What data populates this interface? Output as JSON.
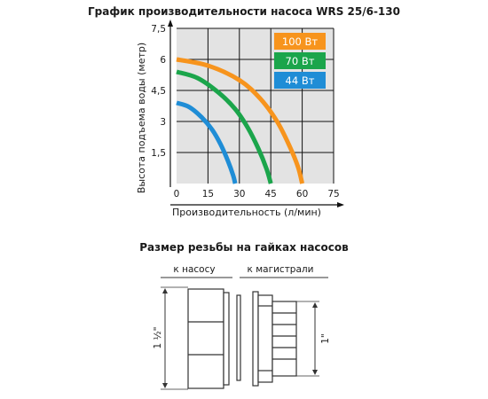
{
  "chart_title": "График производительности насоса WRS 25/6-130",
  "chart_data": {
    "type": "line",
    "xlabel": "Производительность (л/мин)",
    "ylabel": "Высота подъема воды (метр)",
    "x_ticks": [
      "0",
      "15",
      "30",
      "45",
      "60",
      "75"
    ],
    "y_ticks": [
      "1,5",
      "3",
      "4,5",
      "6",
      "7,5"
    ],
    "xlim": [
      0,
      75
    ],
    "ylim": [
      0,
      7.5
    ],
    "grid": true,
    "legend_position": "top-right",
    "series": [
      {
        "name": "100 Вт",
        "color": "#f7941d",
        "x": [
          0,
          15,
          30,
          40,
          48,
          54,
          58,
          60
        ],
        "y": [
          6,
          5.7,
          5,
          4.1,
          3,
          1.8,
          0.8,
          0
        ]
      },
      {
        "name": "70 Вт",
        "color": "#1ba54b",
        "x": [
          0,
          10,
          20,
          28,
          34,
          39,
          43,
          45
        ],
        "y": [
          5.4,
          5.1,
          4.4,
          3.6,
          2.7,
          1.7,
          0.7,
          0
        ]
      },
      {
        "name": "44 Вт",
        "color": "#1f8dd6",
        "x": [
          0,
          6,
          12,
          17,
          21,
          24.5,
          27,
          28
        ],
        "y": [
          3.9,
          3.7,
          3.2,
          2.6,
          1.9,
          1.1,
          0.4,
          0
        ]
      }
    ]
  },
  "fittings": {
    "title": "Размер резьбы на гайках насосов",
    "label_pump": "к насосу",
    "label_main": "к магистрали",
    "size_left": "1 ½\"",
    "size_right": "1\""
  }
}
